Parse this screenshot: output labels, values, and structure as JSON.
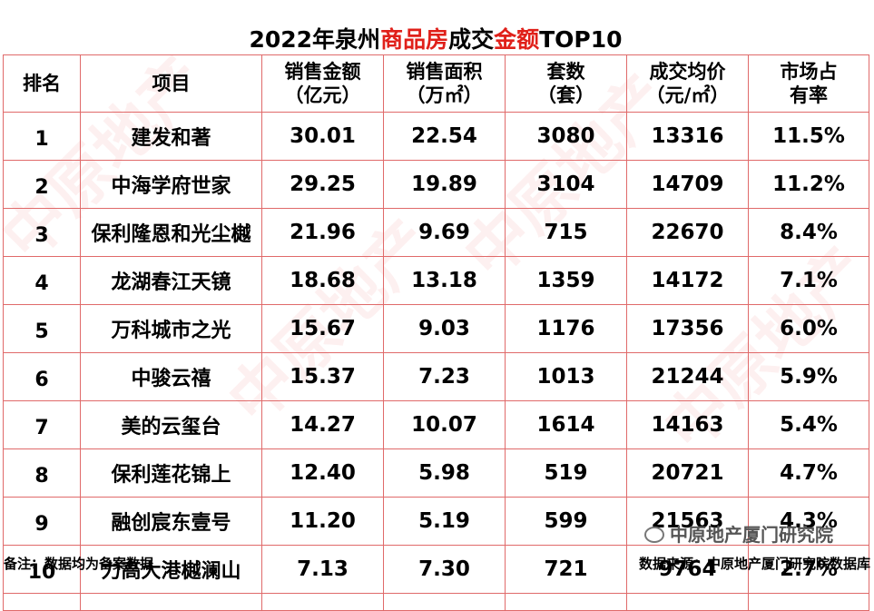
{
  "title": {
    "part1": "2022年泉州",
    "part2": "商品房",
    "part3": "成交",
    "part4": "金额",
    "part5": "TOP10"
  },
  "headers": [
    {
      "line1": "排名",
      "line2": ""
    },
    {
      "line1": "项目",
      "line2": ""
    },
    {
      "line1": "销售金额",
      "line2": "（亿元）"
    },
    {
      "line1": "销售面积",
      "line2": "（万㎡）"
    },
    {
      "line1": "套数",
      "line2": "（套）"
    },
    {
      "line1": "成交均价",
      "line2": "（元/㎡）"
    },
    {
      "line1": "市场占",
      "line2": "有率"
    }
  ],
  "rows": [
    {
      "rank": "1",
      "name": "建发和著",
      "amount": "30.01",
      "area": "22.54",
      "units": "3080",
      "price": "13316",
      "share": "11.5%"
    },
    {
      "rank": "2",
      "name": "中海学府世家",
      "amount": "29.25",
      "area": "19.89",
      "units": "3104",
      "price": "14709",
      "share": "11.2%"
    },
    {
      "rank": "3",
      "name": "保利隆恩和光尘樾",
      "amount": "21.96",
      "area": "9.69",
      "units": "715",
      "price": "22670",
      "share": "8.4%"
    },
    {
      "rank": "4",
      "name": "龙湖春江天镜",
      "amount": "18.68",
      "area": "13.18",
      "units": "1359",
      "price": "14172",
      "share": "7.1%"
    },
    {
      "rank": "5",
      "name": "万科城市之光",
      "amount": "15.67",
      "area": "9.03",
      "units": "1176",
      "price": "17356",
      "share": "6.0%"
    },
    {
      "rank": "6",
      "name": "中骏云禧",
      "amount": "15.37",
      "area": "7.23",
      "units": "1013",
      "price": "21244",
      "share": "5.9%"
    },
    {
      "rank": "7",
      "name": "美的云玺台",
      "amount": "14.27",
      "area": "10.07",
      "units": "1614",
      "price": "14163",
      "share": "5.4%"
    },
    {
      "rank": "8",
      "name": "保利莲花锦上",
      "amount": "12.40",
      "area": "5.98",
      "units": "519",
      "price": "20721",
      "share": "4.7%"
    },
    {
      "rank": "9",
      "name": "融创宸东壹号",
      "amount": "11.20",
      "area": "5.19",
      "units": "599",
      "price": "21563",
      "share": "4.3%"
    },
    {
      "rank": "10",
      "name": "力高大港樾澜山",
      "amount": "7.13",
      "area": "7.30",
      "units": "721",
      "price": "9764",
      "share": "2.7%"
    }
  ],
  "footer": {
    "note": "备注：数据均为备案数据",
    "source": "数据来源：中原地产厦门研究院数据库"
  },
  "wechat_label": "中原地产厦门研究院",
  "watermark_text": "中原地产",
  "colors": {
    "accent": "#e0201a",
    "border": "#e06a6a"
  }
}
